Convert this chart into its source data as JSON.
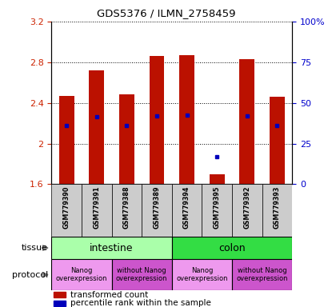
{
  "title": "GDS5376 / ILMN_2758459",
  "samples": [
    "GSM779390",
    "GSM779391",
    "GSM779388",
    "GSM779389",
    "GSM779394",
    "GSM779395",
    "GSM779392",
    "GSM779393"
  ],
  "red_bar_tops": [
    2.47,
    2.72,
    2.48,
    2.86,
    2.87,
    1.7,
    2.83,
    2.46
  ],
  "red_bar_bottom": 1.6,
  "blue_dot_y": [
    2.18,
    2.26,
    2.18,
    2.27,
    2.28,
    1.87,
    2.27,
    2.18
  ],
  "ylim_left": [
    1.6,
    3.2
  ],
  "ylim_right": [
    0,
    100
  ],
  "yticks_left": [
    1.6,
    2.0,
    2.4,
    2.8,
    3.2
  ],
  "ytick_labels_left": [
    "1.6",
    "2",
    "2.4",
    "2.8",
    "3.2"
  ],
  "yticks_right": [
    0,
    25,
    50,
    75,
    100
  ],
  "ytick_labels_right": [
    "0",
    "25",
    "50",
    "75",
    "100%"
  ],
  "tissue_groups": [
    {
      "label": "intestine",
      "start": 0,
      "end": 3,
      "color": "#aaffaa"
    },
    {
      "label": "colon",
      "start": 4,
      "end": 7,
      "color": "#33dd44"
    }
  ],
  "protocol_groups": [
    {
      "label": "Nanog\noverexpression",
      "start": 0,
      "end": 1,
      "color": "#ee99ee"
    },
    {
      "label": "without Nanog\noverexpression",
      "start": 2,
      "end": 3,
      "color": "#cc55cc"
    },
    {
      "label": "Nanog\noverexpression",
      "start": 4,
      "end": 5,
      "color": "#ee99ee"
    },
    {
      "label": "without Nanog\noverexpression",
      "start": 6,
      "end": 7,
      "color": "#cc55cc"
    }
  ],
  "bar_color": "#bb1100",
  "dot_color": "#0000bb",
  "label_color_left": "#cc2200",
  "label_color_right": "#0000cc",
  "sample_bg_color": "#cccccc",
  "bar_width": 0.5
}
